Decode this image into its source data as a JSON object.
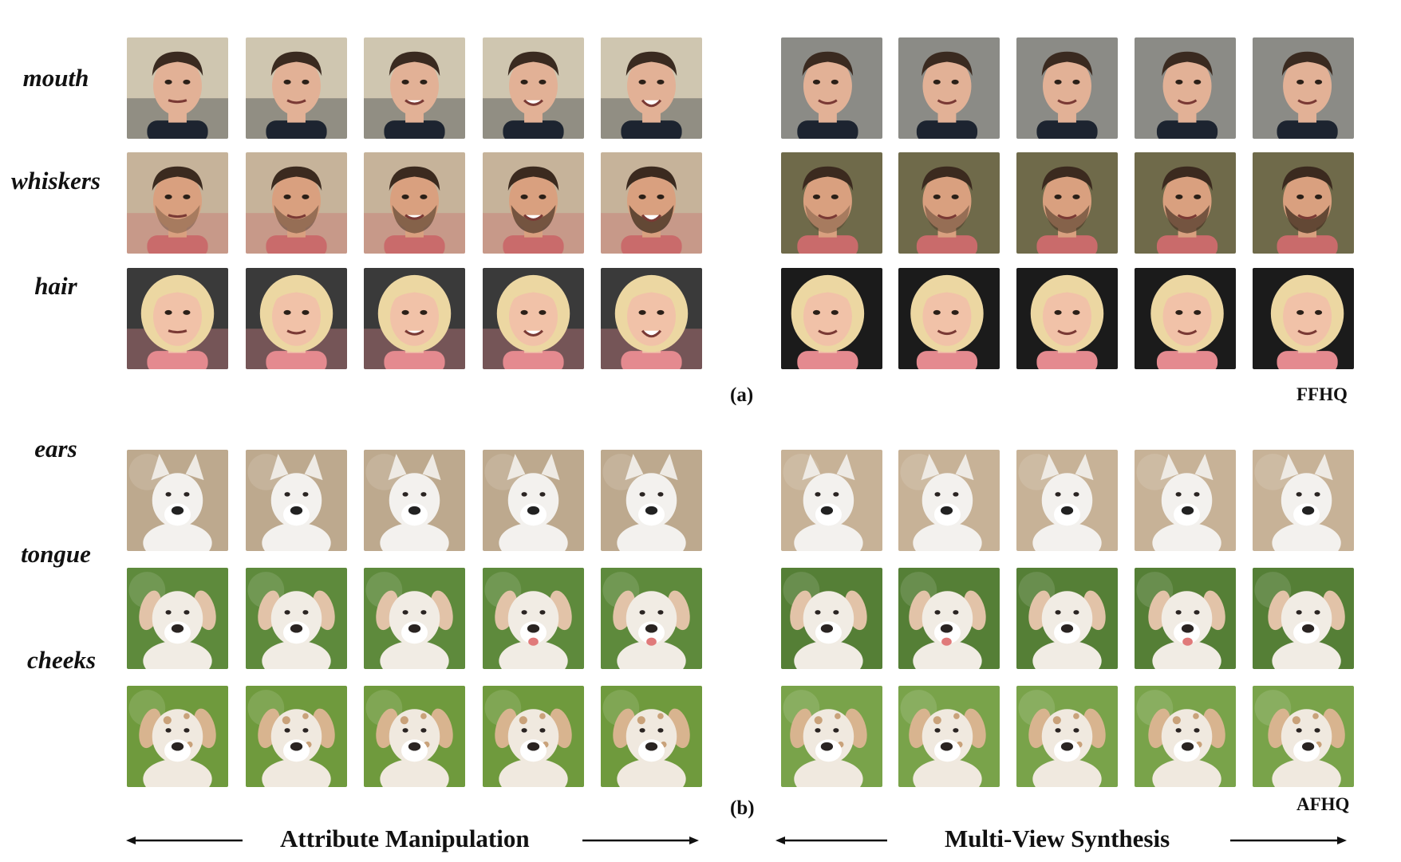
{
  "panel_a": {
    "tag": "(a)",
    "dataset": "FFHQ",
    "rows": [
      {
        "label": "mouth",
        "subject": "man-short-hair",
        "bg_left": "#cfc6b0",
        "bg_right": "#8b8b86",
        "skin": "#e2b196",
        "hair": "#3a2a20",
        "shirt": "#1d2430"
      },
      {
        "label": "whiskers",
        "subject": "man-beard",
        "bg_left": "#c6b39a",
        "bg_right": "#6f6a4a",
        "skin": "#d9a07f",
        "hair": "#3b2a1f",
        "shirt": "#c96b6b"
      },
      {
        "label": "hair",
        "subject": "blond-child",
        "bg_left": "#3a3a3a",
        "bg_right": "#1b1b1b",
        "skin": "#f1c2a8",
        "hair": "#ecd7a2",
        "shirt": "#e48a8f"
      }
    ]
  },
  "panel_b": {
    "tag": "(b)",
    "dataset": "AFHQ",
    "rows": [
      {
        "label": "ears",
        "subject": "white-dog",
        "bg_left": "#bda98e",
        "bg_right": "#c7b297",
        "fur": "#f3f1ee",
        "ear": "#eeeae4",
        "nose": "#222222"
      },
      {
        "label": "tongue",
        "subject": "labrador",
        "bg_left": "#5e8a3c",
        "bg_right": "#557f36",
        "fur": "#f1ece4",
        "ear": "#e2c3a8",
        "nose": "#2a2422"
      },
      {
        "label": "cheeks",
        "subject": "spotted-dog",
        "bg_left": "#6f9a3d",
        "bg_right": "#79a34a",
        "fur": "#f0e9df",
        "ear": "#d8b48f",
        "nose": "#2a2422"
      }
    ]
  },
  "axis": {
    "left_title": "Attribute Manipulation",
    "right_title": "Multi-View Synthesis"
  }
}
